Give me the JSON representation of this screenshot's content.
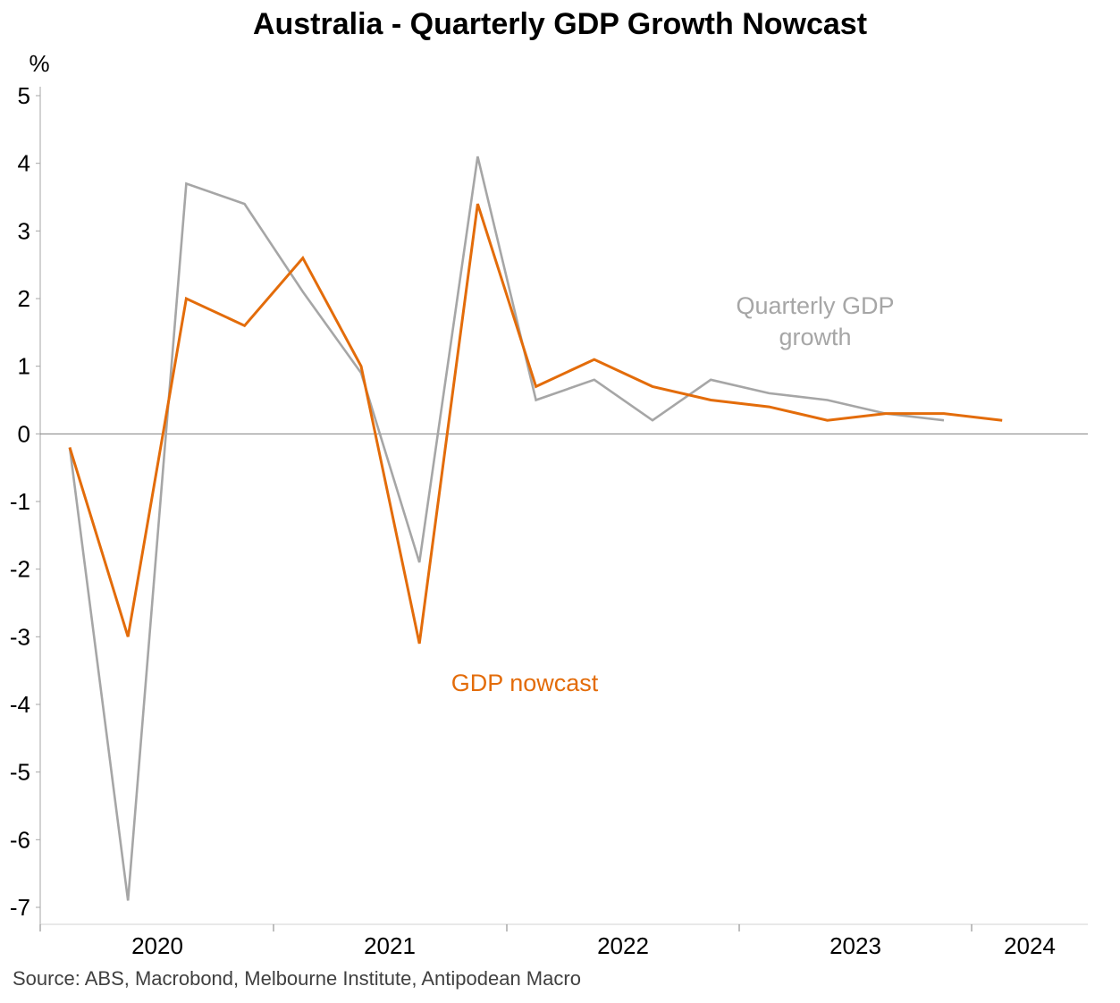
{
  "chart_data": {
    "type": "line",
    "title": "Australia - Quarterly GDP Growth Nowcast",
    "ylabel": "%",
    "xlabel": "",
    "ylim": [
      -7,
      5
    ],
    "yticks": [
      5,
      4,
      3,
      2,
      1,
      0,
      -1,
      -2,
      -3,
      -4,
      -5,
      -6,
      -7
    ],
    "xticks": [
      "2020",
      "2021",
      "2022",
      "2023",
      "2024"
    ],
    "x": [
      "2019 Q4",
      "2020 Q1",
      "2020 Q2",
      "2020 Q3",
      "2020 Q4",
      "2021 Q1",
      "2021 Q2",
      "2021 Q3",
      "2021 Q4",
      "2022 Q1",
      "2022 Q2",
      "2022 Q3",
      "2022 Q4",
      "2023 Q1",
      "2023 Q2",
      "2023 Q3",
      "2023 Q4",
      "2024 Q1"
    ],
    "series": [
      {
        "name": "Quarterly GDP growth",
        "color": "#a6a6a6",
        "values": [
          -0.2,
          -6.9,
          3.7,
          3.4,
          2.1,
          0.9,
          -1.9,
          4.1,
          0.5,
          0.8,
          0.2,
          0.8,
          0.6,
          0.5,
          0.3,
          0.2,
          null,
          null
        ]
      },
      {
        "name": "GDP nowcast",
        "color": "#e36c0a",
        "values": [
          -0.2,
          -3.0,
          2.0,
          1.6,
          2.6,
          1.0,
          -3.1,
          3.4,
          0.7,
          1.1,
          0.7,
          0.5,
          0.4,
          0.2,
          0.3,
          0.3,
          0.2,
          null
        ]
      }
    ],
    "grid": false,
    "legend": "none"
  },
  "annotations": {
    "gdp_growth_line1": "Quarterly GDP",
    "gdp_growth_line2": "growth",
    "nowcast": "GDP nowcast"
  },
  "source": "Source: ABS, Macrobond, Melbourne Institute, Antipodean Macro"
}
